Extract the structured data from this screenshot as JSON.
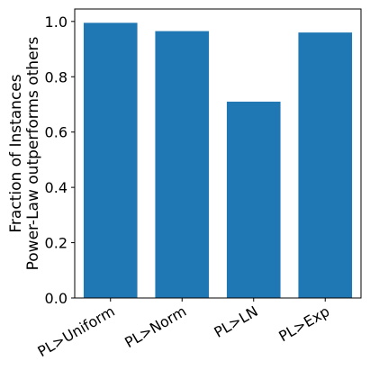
{
  "chart_data": {
    "type": "bar",
    "title": "",
    "xlabel": "",
    "ylabel": [
      "Fraction of Instances",
      "Power-Law outperforms others"
    ],
    "categories": [
      "PL>Uniform",
      "PL>Norm",
      "PL>LN",
      "PL>Exp"
    ],
    "values": [
      0.995,
      0.965,
      0.71,
      0.96
    ],
    "ylim": [
      0,
      1.045
    ],
    "yticks": [
      0.0,
      0.2,
      0.4,
      0.6,
      0.8,
      1.0
    ],
    "ytick_labels": [
      "0.0",
      "0.2",
      "0.4",
      "0.6",
      "0.8",
      "1.0"
    ],
    "grid": false,
    "bar_color": "#1f77b4"
  }
}
